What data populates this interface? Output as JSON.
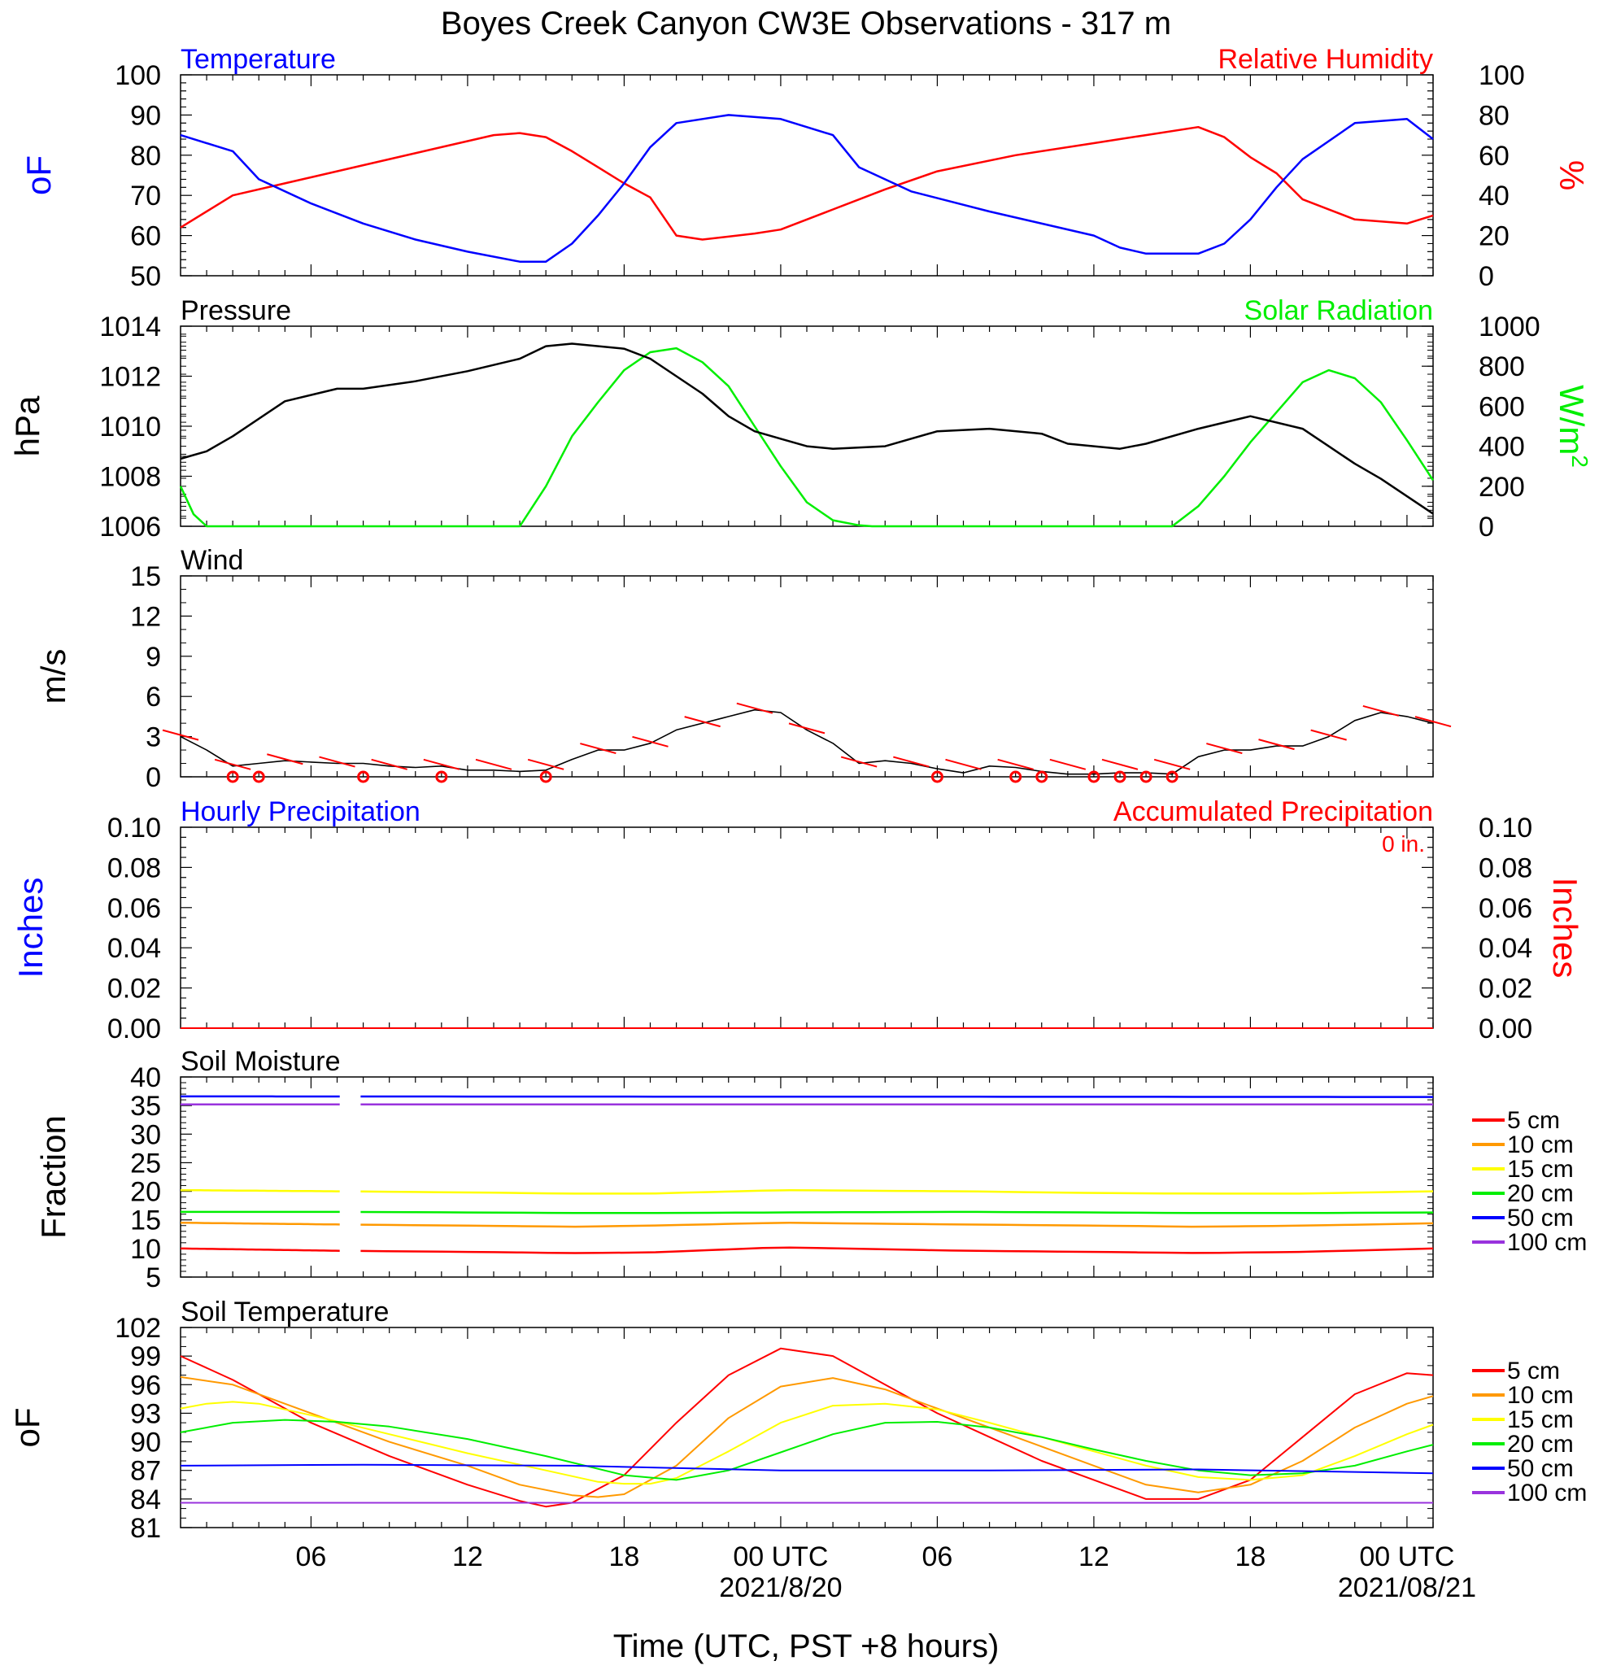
{
  "title": "Boyes Creek Canyon CW3E Observations - 317 m",
  "xaxis": {
    "tick_labels": [
      "06",
      "12",
      "18",
      "00 UTC",
      "06",
      "12",
      "18",
      "00 UTC"
    ],
    "date_labels": [
      "2021/8/20",
      "2021/08/21"
    ],
    "label": "Time (UTC, PST +8 hours)",
    "range_hours": [
      1,
      49
    ]
  },
  "colors": {
    "blue": "#0000ff",
    "red": "#ff0000",
    "green": "#00ee00",
    "black": "#000000",
    "orange": "#ff9900",
    "yellow": "#ffff00",
    "purple": "#9933dd"
  },
  "panels": {
    "temp_rh": {
      "left_title": "Temperature",
      "right_title": "Relative Humidity",
      "left_unit": "oF",
      "right_unit": "%",
      "left_ticks": [
        "50",
        "60",
        "70",
        "80",
        "90",
        "100"
      ],
      "right_ticks": [
        "0",
        "20",
        "40",
        "60",
        "80",
        "100"
      ]
    },
    "pressure_solar": {
      "left_title": "Pressure",
      "right_title": "Solar Radiation",
      "left_unit": "hPa",
      "right_unit": "W/m2",
      "left_ticks": [
        "1006",
        "1008",
        "1010",
        "1012",
        "1014"
      ],
      "right_ticks": [
        "0",
        "200",
        "400",
        "600",
        "800",
        "1000"
      ]
    },
    "wind": {
      "left_title": "Wind",
      "left_unit": "m/s",
      "left_ticks": [
        "0",
        "3",
        "6",
        "9",
        "12",
        "15"
      ]
    },
    "precip": {
      "left_title": "Hourly Precipitation",
      "right_title": "Accumulated Precipitation",
      "accum_text": "0 in.",
      "left_unit": "Inches",
      "right_unit": "Inches",
      "left_ticks": [
        "0.00",
        "0.02",
        "0.04",
        "0.06",
        "0.08",
        "0.10"
      ],
      "right_ticks": [
        "0.00",
        "0.02",
        "0.04",
        "0.06",
        "0.08",
        "0.10"
      ]
    },
    "soil_moisture": {
      "left_title": "Soil Moisture",
      "left_unit": "Fraction",
      "left_ticks": [
        "5",
        "10",
        "15",
        "20",
        "25",
        "30",
        "35",
        "40"
      ],
      "legend": [
        "5 cm",
        "10 cm",
        "15 cm",
        "20 cm",
        "50 cm",
        "100 cm"
      ]
    },
    "soil_temp": {
      "left_title": "Soil Temperature",
      "left_unit": "oF",
      "left_ticks": [
        "81",
        "84",
        "87",
        "90",
        "93",
        "96",
        "99",
        "102"
      ],
      "legend": [
        "5 cm",
        "10 cm",
        "15 cm",
        "20 cm",
        "50 cm",
        "100 cm"
      ]
    }
  },
  "chart_data": [
    {
      "type": "line",
      "title": "Temperature / Relative Humidity",
      "x_unit": "hours since 2021-08-19 00 UTC",
      "ylim_left": [
        50,
        100
      ],
      "ylim_right": [
        0,
        100
      ],
      "series": [
        {
          "name": "Temperature",
          "axis": "left",
          "color": "blue",
          "x": [
            1,
            3,
            4,
            6,
            8,
            10,
            12,
            14,
            15,
            16,
            17,
            18,
            19,
            20,
            22,
            24,
            26,
            27,
            29,
            32,
            36,
            37,
            38,
            40,
            41,
            42,
            43,
            44,
            46,
            48,
            49
          ],
          "values": [
            85,
            81,
            74,
            68,
            63,
            59,
            56,
            53.5,
            53.5,
            58,
            65,
            73,
            82,
            88,
            90,
            89,
            85,
            77,
            71,
            66,
            60,
            57,
            55.5,
            55.5,
            58,
            64,
            72,
            79,
            88,
            89,
            84
          ]
        },
        {
          "name": "Relative Humidity",
          "axis": "right",
          "color": "red",
          "x": [
            1,
            3,
            5,
            8,
            11,
            13,
            14,
            15,
            16,
            17,
            18,
            19,
            20,
            21,
            23,
            24,
            26,
            28,
            30,
            33,
            36,
            37,
            38,
            40,
            41,
            42,
            43,
            44,
            46,
            48,
            49
          ],
          "values": [
            24,
            40,
            46,
            55,
            64,
            70,
            71,
            69,
            62,
            54,
            46,
            39,
            20,
            18,
            21,
            23,
            33,
            43,
            52,
            60,
            66,
            68,
            70,
            74,
            69,
            59,
            51,
            38,
            28,
            26,
            30
          ]
        }
      ]
    },
    {
      "type": "line",
      "title": "Pressure / Solar Radiation",
      "ylim_left": [
        1006,
        1014
      ],
      "ylim_right": [
        0,
        1000
      ],
      "series": [
        {
          "name": "Pressure",
          "axis": "left",
          "color": "black",
          "x": [
            1,
            2,
            3,
            5,
            7,
            8,
            10,
            12,
            14,
            15,
            16,
            18,
            19,
            21,
            22,
            23,
            24,
            25,
            26,
            28,
            30,
            32,
            34,
            35,
            37,
            38,
            40,
            42,
            44,
            45,
            46,
            47,
            48,
            49
          ],
          "values": [
            1008.7,
            1009,
            1009.6,
            1011,
            1011.5,
            1011.5,
            1011.8,
            1012.2,
            1012.7,
            1013.2,
            1013.3,
            1013.1,
            1012.7,
            1011.3,
            1010.4,
            1009.8,
            1009.5,
            1009.2,
            1009.1,
            1009.2,
            1009.8,
            1009.9,
            1009.7,
            1009.3,
            1009.1,
            1009.3,
            1009.9,
            1010.4,
            1009.9,
            1009.2,
            1008.5,
            1007.9,
            1007.2,
            1006.5
          ]
        },
        {
          "name": "Solar Radiation",
          "axis": "right",
          "color": "green",
          "x": [
            1,
            1.5,
            2,
            13.5,
            14,
            15,
            16,
            17,
            18,
            19,
            20,
            21,
            22,
            23,
            24,
            25,
            26,
            27,
            27.5,
            38.5,
            39,
            40,
            41,
            42,
            43,
            44,
            45,
            46,
            47,
            48,
            49
          ],
          "values": [
            200,
            60,
            0,
            0,
            0,
            200,
            450,
            620,
            780,
            870,
            890,
            820,
            700,
            500,
            300,
            120,
            30,
            5,
            0,
            0,
            0,
            100,
            250,
            420,
            570,
            720,
            780,
            740,
            620,
            430,
            230
          ]
        }
      ]
    },
    {
      "type": "line",
      "title": "Wind",
      "ylim": [
        0,
        15
      ],
      "series": [
        {
          "name": "Wind",
          "color": "black",
          "x": [
            1,
            2,
            3,
            4,
            5,
            6,
            7,
            8,
            9,
            10,
            11,
            12,
            13,
            14,
            15,
            16,
            17,
            18,
            19,
            20,
            21,
            22,
            23,
            24,
            25,
            26,
            27,
            28,
            29,
            30,
            31,
            32,
            33,
            34,
            35,
            36,
            37,
            38,
            39,
            40,
            41,
            42,
            43,
            44,
            45,
            46,
            47,
            48,
            49
          ],
          "values": [
            3,
            2,
            0.8,
            1,
            1.2,
            1.1,
            1,
            1,
            0.8,
            0.7,
            0.8,
            0.5,
            0.5,
            0.4,
            0.5,
            1.3,
            2,
            2,
            2.5,
            3.5,
            4,
            4.5,
            5,
            4.8,
            3.5,
            2.5,
            1,
            1.2,
            1,
            0.6,
            0.3,
            0.8,
            0.7,
            0.4,
            0.2,
            0.2,
            0.3,
            0.3,
            0.2,
            1.5,
            2,
            2,
            2.3,
            2.3,
            3,
            4.2,
            4.8,
            4.5,
            4
          ]
        }
      ],
      "calm_markers_hours": [
        3,
        4,
        8,
        11,
        15,
        30,
        33,
        34,
        36,
        37,
        38,
        39
      ]
    },
    {
      "type": "line",
      "title": "Precipitation",
      "ylim_left": [
        0,
        0.1
      ],
      "ylim_right": [
        0,
        0.1
      ],
      "series": [
        {
          "name": "Hourly Precipitation",
          "color": "blue",
          "x": [
            1,
            49
          ],
          "values": [
            0,
            0
          ]
        },
        {
          "name": "Accumulated Precipitation",
          "color": "red",
          "x": [
            1,
            49
          ],
          "values": [
            0,
            0
          ]
        }
      ]
    },
    {
      "type": "line",
      "title": "Soil Moisture",
      "ylim": [
        5,
        40
      ],
      "gap_hours": [
        7.1,
        7.9
      ],
      "series": [
        {
          "name": "5 cm",
          "color": "red",
          "x": [
            1,
            7,
            12,
            16,
            19,
            24,
            31,
            36,
            40,
            44,
            49
          ],
          "values": [
            10,
            9.6,
            9.4,
            9.2,
            9.3,
            10.2,
            9.6,
            9.4,
            9.2,
            9.4,
            10
          ]
        },
        {
          "name": "10 cm",
          "color": "orange",
          "x": [
            1,
            7,
            12,
            16,
            19,
            24,
            31,
            36,
            40,
            44,
            49
          ],
          "values": [
            14.5,
            14.2,
            14,
            13.8,
            14,
            14.5,
            14.2,
            14,
            13.8,
            14,
            14.4
          ]
        },
        {
          "name": "15 cm",
          "color": "yellow",
          "x": [
            1,
            7,
            12,
            16,
            19,
            24,
            31,
            36,
            40,
            44,
            49
          ],
          "values": [
            20.2,
            20,
            19.8,
            19.6,
            19.6,
            20.2,
            20,
            19.7,
            19.6,
            19.6,
            20
          ]
        },
        {
          "name": "20 cm",
          "color": "green",
          "x": [
            1,
            7,
            12,
            16,
            19,
            24,
            31,
            36,
            40,
            44,
            49
          ],
          "values": [
            16.4,
            16.4,
            16.3,
            16.2,
            16.2,
            16.3,
            16.4,
            16.3,
            16.2,
            16.2,
            16.3
          ]
        },
        {
          "name": "50 cm",
          "color": "blue",
          "x": [
            1,
            49
          ],
          "values": [
            36.6,
            36.5
          ]
        },
        {
          "name": "100 cm",
          "color": "purple",
          "x": [
            1,
            49
          ],
          "values": [
            35.2,
            35.2
          ]
        }
      ]
    },
    {
      "type": "line",
      "title": "Soil Temperature",
      "ylim": [
        81,
        102
      ],
      "series": [
        {
          "name": "5 cm",
          "color": "red",
          "x": [
            1,
            3,
            6,
            9,
            12,
            14,
            15,
            16,
            18,
            20,
            22,
            24,
            26,
            28,
            30,
            32,
            34,
            36,
            38,
            40,
            42,
            44,
            46,
            48,
            49
          ],
          "values": [
            99,
            96.5,
            92,
            88.5,
            85.5,
            83.8,
            83.2,
            83.6,
            86.5,
            92,
            97,
            99.8,
            99,
            96,
            93,
            90.5,
            88,
            86,
            84,
            84,
            86,
            90.5,
            95,
            97.2,
            97
          ]
        },
        {
          "name": "10 cm",
          "color": "orange",
          "x": [
            1,
            3,
            6,
            9,
            12,
            14,
            16,
            17,
            18,
            20,
            22,
            24,
            26,
            28,
            30,
            32,
            34,
            36,
            38,
            40,
            42,
            44,
            46,
            48,
            49
          ],
          "values": [
            96.8,
            96,
            93,
            90,
            87.5,
            85.5,
            84.4,
            84.2,
            84.5,
            87.5,
            92.5,
            95.8,
            96.7,
            95.5,
            93.5,
            91.5,
            89.5,
            87.5,
            85.5,
            84.7,
            85.5,
            88,
            91.5,
            94,
            94.8
          ]
        },
        {
          "name": "15 cm",
          "color": "yellow",
          "x": [
            1,
            2,
            3,
            4,
            6,
            9,
            12,
            15,
            17,
            18,
            19,
            20,
            22,
            24,
            26,
            28,
            30,
            32,
            34,
            36,
            38,
            40,
            42,
            44,
            46,
            48,
            49
          ],
          "values": [
            93.5,
            94,
            94.2,
            94,
            92.8,
            90.8,
            88.8,
            87,
            85.8,
            85.6,
            85.6,
            86.2,
            89,
            92,
            93.8,
            94,
            93.4,
            92,
            90.5,
            89,
            87.5,
            86.3,
            86,
            86.5,
            88.5,
            90.8,
            91.8
          ]
        },
        {
          "name": "20 cm",
          "color": "green",
          "x": [
            1,
            3,
            5,
            7,
            9,
            12,
            15,
            18,
            20,
            22,
            24,
            26,
            28,
            30,
            32,
            34,
            36,
            38,
            40,
            42,
            44,
            46,
            48,
            49
          ],
          "values": [
            91,
            92,
            92.3,
            92.1,
            91.6,
            90.3,
            88.5,
            86.5,
            86,
            87,
            88.9,
            90.8,
            92,
            92.1,
            91.5,
            90.5,
            89.2,
            88,
            87,
            86.5,
            86.7,
            87.5,
            89,
            89.7
          ]
        },
        {
          "name": "50 cm",
          "color": "blue",
          "x": [
            1,
            8,
            16,
            24,
            32,
            40,
            49
          ],
          "values": [
            87.5,
            87.6,
            87.5,
            87,
            87,
            87.1,
            86.7
          ]
        },
        {
          "name": "100 cm",
          "color": "purple",
          "x": [
            1,
            49
          ],
          "values": [
            83.6,
            83.6
          ]
        }
      ]
    }
  ]
}
